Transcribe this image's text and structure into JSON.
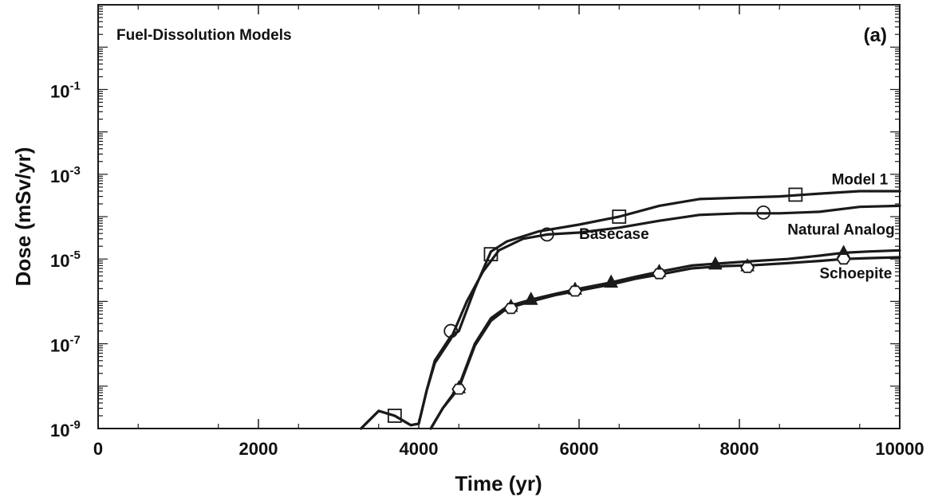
{
  "chart_data": {
    "type": "line",
    "title": "Fuel-Dissolution Models",
    "panel_label": "(a)",
    "xlabel": "Time (yr)",
    "ylabel": "Dose (mSv/yr)",
    "xlim": [
      0,
      10000
    ],
    "ylim": [
      1e-09,
      10
    ],
    "yscale": "log",
    "x_ticks": [
      0,
      2000,
      4000,
      6000,
      8000,
      10000
    ],
    "x_tick_labels": [
      "0",
      "2000",
      "4000",
      "6000",
      "8000",
      "10000"
    ],
    "y_ticks": [
      1e-09,
      1e-07,
      1e-05,
      0.001,
      0.1
    ],
    "y_tick_labels": [
      {
        "base": "10",
        "exp": "-9"
      },
      {
        "base": "10",
        "exp": "-7"
      },
      {
        "base": "10",
        "exp": "-5"
      },
      {
        "base": "10",
        "exp": "-3"
      },
      {
        "base": "10",
        "exp": "-1"
      }
    ],
    "grid": false,
    "series": [
      {
        "name": "Model 1",
        "marker": "square",
        "label_at": [
          9150,
          0.00058
        ],
        "x": [
          3280,
          3500,
          3700,
          3900,
          4000,
          4100,
          4200,
          4400,
          4500,
          4700,
          4900,
          5100,
          5500,
          6000,
          6500,
          7000,
          7500,
          8000,
          8500,
          9000,
          9500,
          10000
        ],
        "y": [
          1e-09,
          2.6e-09,
          2e-09,
          1.2e-09,
          1.3e-09,
          8e-09,
          4e-08,
          1.5e-07,
          2e-07,
          2e-06,
          1.5e-05,
          2.6e-05,
          4.5e-05,
          6.5e-05,
          0.0001,
          0.00018,
          0.00026,
          0.00028,
          0.0003,
          0.00035,
          0.0004,
          0.0004
        ],
        "markers_x": [
          3700,
          4900,
          6500,
          8700
        ],
        "markers_y": [
          2e-09,
          1.3e-05,
          0.0001,
          0.00033
        ]
      },
      {
        "name": "Basecase",
        "marker": "circle",
        "label_at": [
          6000,
          3e-05
        ],
        "x": [
          3280,
          3500,
          3700,
          3900,
          4000,
          4100,
          4200,
          4400,
          4600,
          4800,
          5000,
          5300,
          5600,
          6000,
          6500,
          7000,
          7500,
          8000,
          8500,
          9000,
          9500,
          10000
        ],
        "y": [
          1e-09,
          2.6e-09,
          2e-09,
          1.2e-09,
          1.3e-09,
          8e-09,
          3.5e-08,
          1.3e-07,
          1e-06,
          5e-06,
          1.6e-05,
          3e-05,
          3.8e-05,
          4.2e-05,
          5.5e-05,
          8e-05,
          0.00011,
          0.00012,
          0.00012,
          0.00013,
          0.00017,
          0.00018
        ],
        "markers_x": [
          4400,
          5600,
          8300
        ],
        "markers_y": [
          2e-07,
          3.8e-05,
          0.000125
        ]
      },
      {
        "name": "Natural Analog",
        "marker": "triangle",
        "label_at": [
          8600,
          3.8e-05
        ],
        "x": [
          4150,
          4300,
          4500,
          4700,
          4900,
          5100,
          5400,
          5700,
          6000,
          6400,
          6700,
          7000,
          7400,
          7800,
          8200,
          8600,
          9000,
          9300,
          9600,
          10000
        ],
        "y": [
          1e-09,
          3e-09,
          1e-08,
          1e-07,
          4e-07,
          7.5e-07,
          1.1e-06,
          1.5e-06,
          2e-06,
          2.8e-06,
          3.8e-06,
          5e-06,
          7e-06,
          8e-06,
          9e-06,
          1e-05,
          1.2e-05,
          1.4e-05,
          1.5e-05,
          1.6e-05
        ],
        "markers_x": [
          4500,
          5150,
          5400,
          5950,
          6400,
          7000,
          7700,
          8100,
          9300
        ],
        "markers_y": [
          9e-09,
          7.5e-07,
          1.1e-06,
          1.9e-06,
          2.8e-06,
          5e-06,
          7.5e-06,
          6.8e-06,
          1.4e-05
        ]
      },
      {
        "name": "Schoepite",
        "marker": "hex",
        "label_at": [
          9000,
          3.5e-06
        ],
        "x": [
          4150,
          4300,
          4500,
          4700,
          4900,
          5100,
          5400,
          5700,
          6000,
          6400,
          6700,
          7000,
          7400,
          7800,
          8200,
          8600,
          9000,
          9300,
          9600,
          10000
        ],
        "y": [
          1e-09,
          3e-09,
          9e-09,
          9e-08,
          3.5e-07,
          6.8e-07,
          1e-06,
          1.4e-06,
          1.8e-06,
          2.5e-06,
          3.4e-06,
          4.3e-06,
          6e-06,
          6.8e-06,
          7.2e-06,
          8e-06,
          9e-06,
          1e-05,
          1.05e-05,
          1.1e-05
        ],
        "markers_x": [
          4500,
          5150,
          5950,
          7000,
          8100,
          9300
        ],
        "markers_y": [
          8.5e-09,
          6.8e-07,
          1.75e-06,
          4.5e-06,
          6.3e-06,
          1e-05
        ]
      }
    ]
  }
}
